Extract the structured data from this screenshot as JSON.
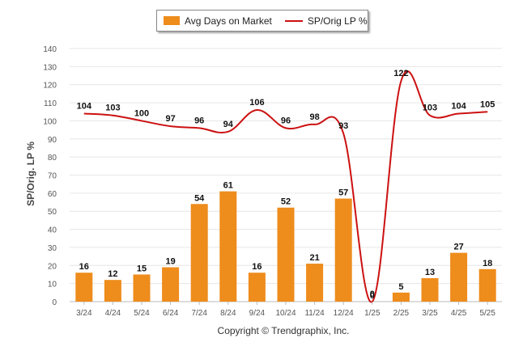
{
  "chart_data": {
    "type": "bar",
    "categories": [
      "3/24",
      "4/24",
      "5/24",
      "6/24",
      "7/24",
      "8/24",
      "9/24",
      "10/24",
      "11/24",
      "12/24",
      "1/25",
      "2/25",
      "3/25",
      "4/25",
      "5/25"
    ],
    "series": [
      {
        "name": "Avg Days on Market",
        "kind": "bar",
        "values": [
          16,
          12,
          15,
          19,
          54,
          61,
          16,
          52,
          21,
          57,
          0,
          5,
          13,
          27,
          18
        ]
      },
      {
        "name": "SP/Orig LP %",
        "kind": "line",
        "values": [
          104,
          103,
          100,
          97,
          96,
          94,
          106,
          96,
          98,
          93,
          0,
          122,
          103,
          104,
          105
        ]
      }
    ],
    "ylabel": "SP/Orig. LP %",
    "ylim": [
      0,
      140
    ],
    "yticks": [
      0,
      10,
      20,
      30,
      40,
      50,
      60,
      70,
      80,
      90,
      100,
      110,
      120,
      130,
      140
    ],
    "grid": true,
    "legend": "top-center",
    "footer": "Copyright © Trendgraphix, Inc.",
    "colors": {
      "bar": "#EE8C1C",
      "line": "#CC1111",
      "grid": "#E6E6E6",
      "axis_text": "#555555"
    }
  }
}
